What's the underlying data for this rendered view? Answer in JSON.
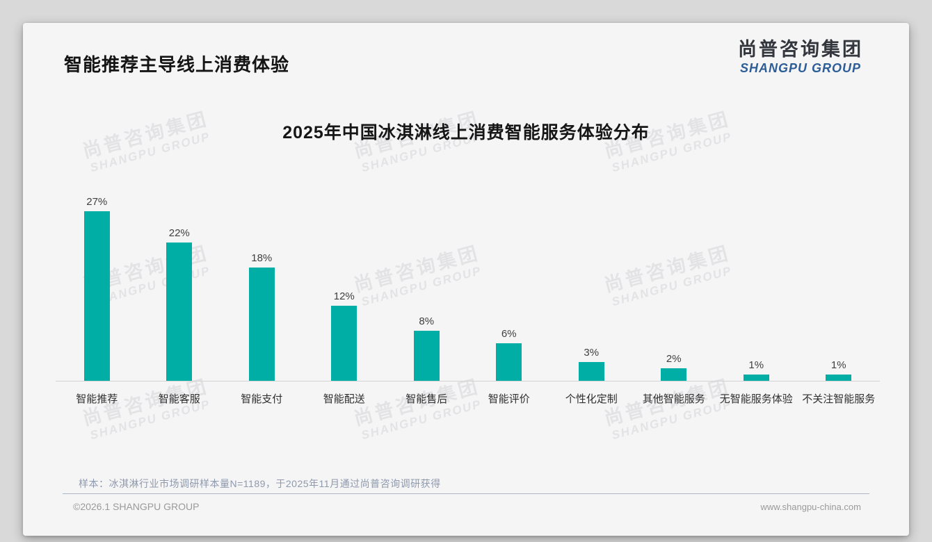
{
  "page": {
    "title": "智能推荐主导线上消费体验",
    "logo": {
      "cn": "尚普咨询集团",
      "en": "SHANGPU GROUP"
    },
    "footnote": "样本：冰淇淋行业市场调研样本量N=1189，于2025年11月通过尚普咨询调研获得",
    "footer_left": "©2026.1 SHANGPU GROUP",
    "footer_right": "www.shangpu-china.com",
    "watermark": {
      "cn": "尚普咨询集团",
      "en": "SHANGPU GROUP"
    }
  },
  "chart_data": {
    "type": "bar",
    "title": "2025年中国冰淇淋线上消费智能服务体验分布",
    "categories": [
      "智能推荐",
      "智能客服",
      "智能支付",
      "智能配送",
      "智能售后",
      "智能评价",
      "个性化定制",
      "其他智能服务",
      "无智能服务体验",
      "不关注智能服务"
    ],
    "values": [
      27,
      22,
      18,
      12,
      8,
      6,
      3,
      2,
      1,
      1
    ],
    "unit": "%",
    "value_labels": true,
    "bar_color": "#00aea6",
    "ylim": [
      0,
      30
    ],
    "grid": false,
    "legend": false,
    "xlabel": "",
    "ylabel": ""
  }
}
